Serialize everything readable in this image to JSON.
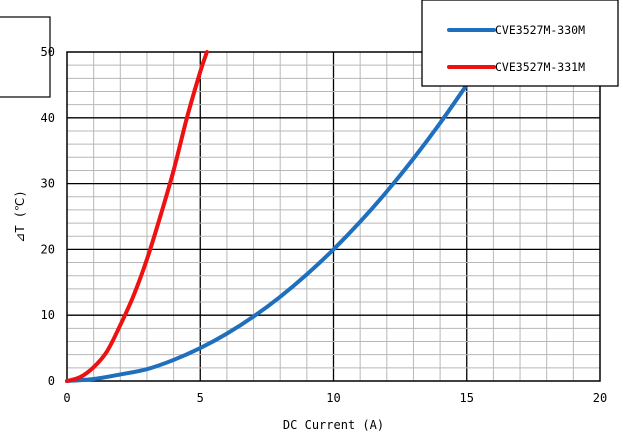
{
  "chart_data": {
    "type": "line",
    "xlabel": "DC Current (A)",
    "ylabel": "⊿T (℃)",
    "xlim": [
      0,
      20
    ],
    "ylim": [
      0,
      50
    ],
    "x_ticks": [
      "0",
      "5",
      "10",
      "15",
      "20"
    ],
    "y_ticks": [
      "0",
      "10",
      "20",
      "30",
      "40",
      "50"
    ],
    "grid": "major and minor",
    "legend_position": "top-right",
    "series": [
      {
        "name": "CVE3527M-330M",
        "color": "#1f6fbf",
        "points": [
          [
            0,
            0
          ],
          [
            1,
            0.3
          ],
          [
            2,
            1.0
          ],
          [
            3,
            1.8
          ],
          [
            4,
            3.2
          ],
          [
            5,
            5
          ],
          [
            6,
            7.2
          ],
          [
            7,
            9.8
          ],
          [
            8,
            12.8
          ],
          [
            9,
            16.2
          ],
          [
            10,
            20
          ],
          [
            11,
            24.2
          ],
          [
            12,
            28.8
          ],
          [
            13,
            33.8
          ],
          [
            14,
            39.2
          ],
          [
            15,
            45
          ]
        ]
      },
      {
        "name": "CVE3527M-331M",
        "color": "#ee1111",
        "points": [
          [
            0,
            0
          ],
          [
            0.5,
            0.6
          ],
          [
            1,
            2.1
          ],
          [
            1.5,
            4.5
          ],
          [
            2,
            8.5
          ],
          [
            2.5,
            13
          ],
          [
            3,
            18.5
          ],
          [
            3.5,
            25
          ],
          [
            4,
            32
          ],
          [
            4.5,
            40
          ],
          [
            5,
            47
          ],
          [
            5.25,
            50
          ]
        ]
      }
    ]
  }
}
